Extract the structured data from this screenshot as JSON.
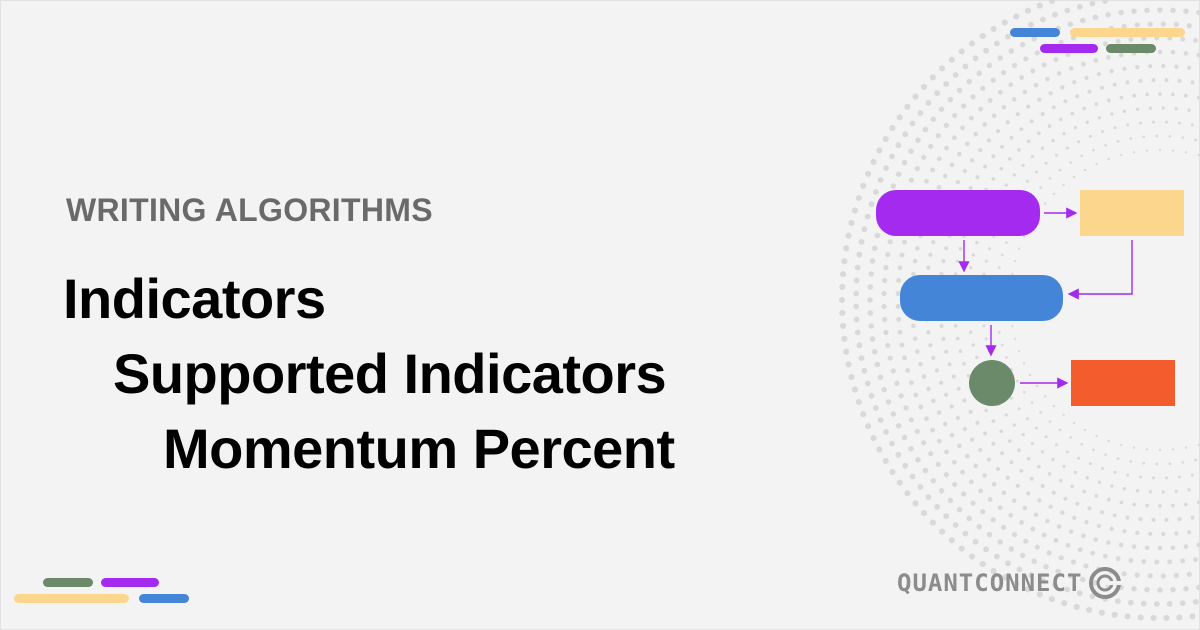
{
  "header": {
    "eyebrow": "WRITING ALGORITHMS"
  },
  "title": {
    "line1": "Indicators",
    "line2": "Supported Indicators",
    "line3": "Momentum Percent"
  },
  "logo": {
    "text": "QUANTCONNECT",
    "icon": "quantconnect-logo-icon"
  },
  "colors": {
    "purple": "#a52af0",
    "yellow": "#fbd68c",
    "blue": "#4585d8",
    "green": "#6b8a6a",
    "orange": "#f35d2e",
    "arrow": "#a52af0"
  }
}
